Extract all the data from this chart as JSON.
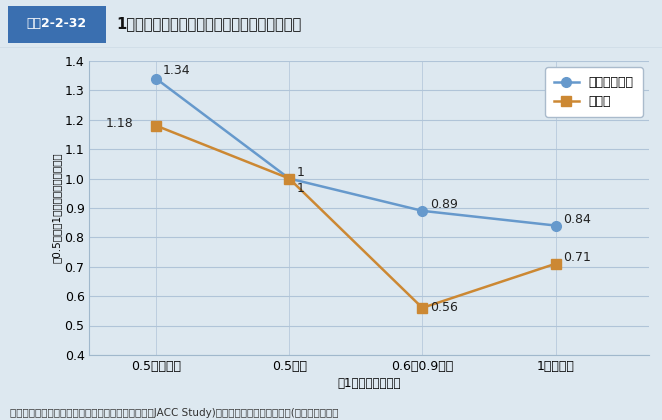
{
  "title": "1日の歩行時間と循環器疾病による死亡の関係",
  "title_box_label": "図表2-2-32",
  "x_labels": [
    "0.5時間未満",
    "0.5時間",
    "0.6～0.9時間",
    "1時間以上"
  ],
  "x_axis_label": "〈1日の歩行時間〉",
  "y_label": "（0.5時間を1とした場合の死亡率）",
  "ylim": [
    0.4,
    1.4
  ],
  "yticks": [
    0.4,
    0.5,
    0.6,
    0.7,
    0.8,
    0.9,
    1.0,
    1.1,
    1.2,
    1.3,
    1.4
  ],
  "series": [
    {
      "name": "虚血性心疾患",
      "values": [
        1.34,
        1.0,
        0.89,
        0.84
      ],
      "color": "#6699cc",
      "marker": "o",
      "marker_color": "#6699cc"
    },
    {
      "name": "脳梗塞",
      "values": [
        1.18,
        1.0,
        0.56,
        0.71
      ],
      "color": "#cc8833",
      "marker": "s",
      "marker_color": "#cc8833"
    }
  ],
  "background_color": "#dde8f0",
  "plot_bg_color": "#dde8f0",
  "title_header_bg": "#ffffff",
  "title_box_bg": "#3a6fb0",
  "title_box_text_color": "#ffffff",
  "title_text_color": "#111111",
  "grid_color": "#b0c4d8",
  "border_color": "#a0b8cc",
  "footnote": "資料：文部科学省科学研究費大規模コホート研究（JACC Study)「運動と循環器疾患死亡」(野田博之）より",
  "label_font_size": 8.5,
  "annotation_font_size": 9,
  "tick_font_size": 9
}
